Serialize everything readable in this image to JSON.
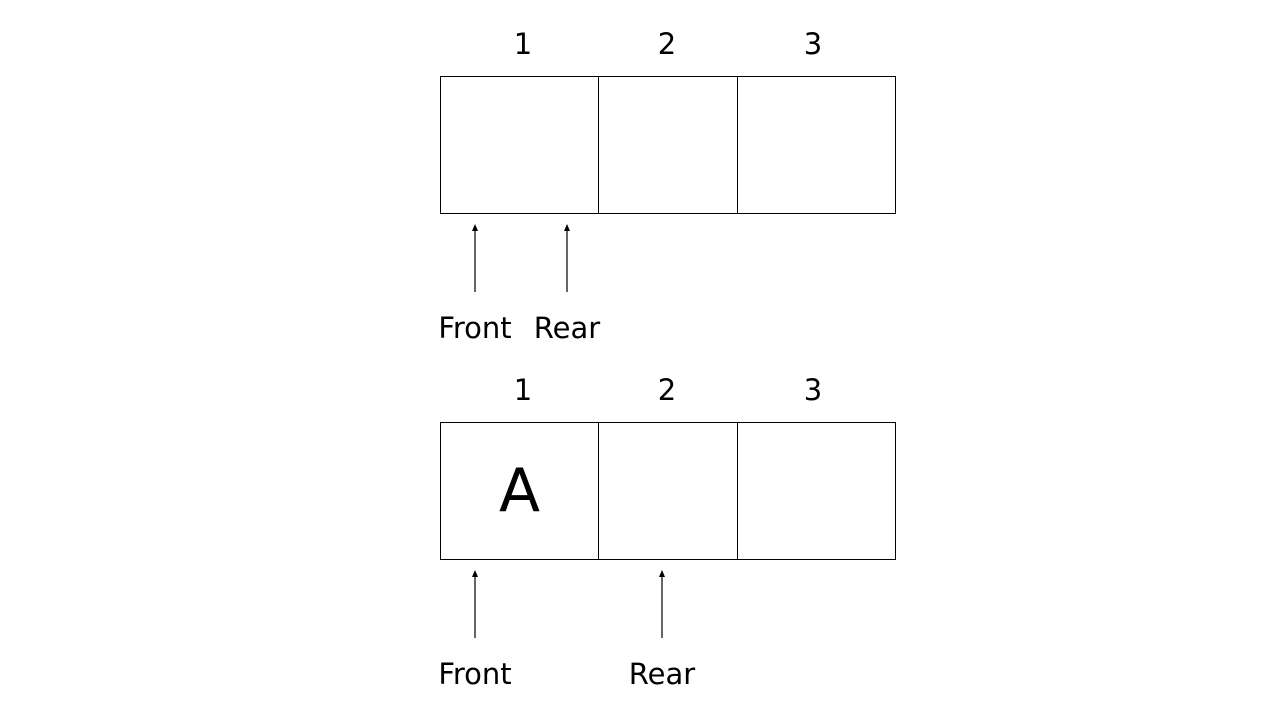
{
  "diagram_top": {
    "indices": [
      "1",
      "2",
      "3"
    ],
    "cells": [
      "",
      "",
      ""
    ],
    "pointers": {
      "front": "Front",
      "rear": "Rear"
    }
  },
  "diagram_bottom": {
    "indices": [
      "1",
      "2",
      "3"
    ],
    "cells": [
      "A",
      "",
      ""
    ],
    "pointers": {
      "front": "Front",
      "rear": "Rear"
    }
  }
}
